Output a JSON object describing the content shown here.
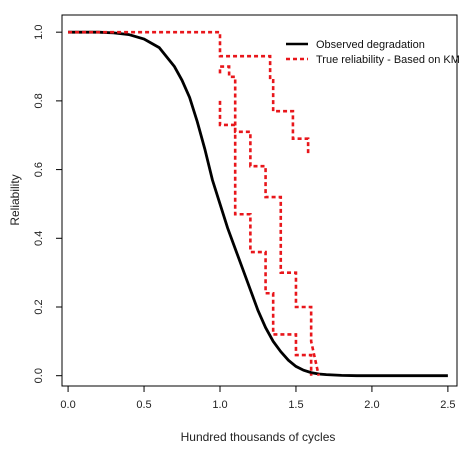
{
  "chart_data": {
    "type": "line",
    "title": "",
    "xlabel": "Hundred thousands of cycles",
    "ylabel": "Reliability",
    "xlim": [
      -0.04,
      2.56
    ],
    "ylim": [
      -0.03,
      1.05
    ],
    "xticks": [
      0.0,
      0.5,
      1.0,
      1.5,
      2.0,
      2.5
    ],
    "xtick_labels": [
      "0.0",
      "0.5",
      "1.0",
      "1.5",
      "2.0",
      "2.5"
    ],
    "yticks": [
      0.0,
      0.2,
      0.4,
      0.6,
      0.8,
      1.0
    ],
    "ytick_labels": [
      "0.0",
      "0.2",
      "0.4",
      "0.6",
      "0.8",
      "1.0"
    ],
    "grid": false,
    "legend_position": "top-right",
    "series": [
      {
        "name": "Observed degradation",
        "style": "solid",
        "color": "#000000",
        "x": [
          0.0,
          0.2,
          0.3,
          0.4,
          0.5,
          0.6,
          0.7,
          0.75,
          0.8,
          0.85,
          0.9,
          0.95,
          1.0,
          1.05,
          1.1,
          1.15,
          1.2,
          1.25,
          1.3,
          1.35,
          1.4,
          1.45,
          1.5,
          1.55,
          1.6,
          1.65,
          1.7,
          1.8,
          1.9,
          2.0,
          2.5
        ],
        "y": [
          1.0,
          1.0,
          0.998,
          0.993,
          0.98,
          0.955,
          0.9,
          0.86,
          0.81,
          0.74,
          0.66,
          0.57,
          0.5,
          0.43,
          0.37,
          0.31,
          0.25,
          0.19,
          0.14,
          0.1,
          0.07,
          0.045,
          0.027,
          0.016,
          0.009,
          0.005,
          0.003,
          0.001,
          0.0,
          0.0,
          0.0
        ]
      },
      {
        "name": "True reliability - Based on KM",
        "style": "dashed",
        "color": "#e8161b",
        "curves": [
          {
            "x": [
              0.0,
              1.0,
              1.0,
              1.3,
              1.3,
              1.33,
              1.33,
              1.35,
              1.35,
              1.48,
              1.48,
              1.58,
              1.58
            ],
            "y": [
              1.0,
              1.0,
              0.93,
              0.93,
              0.93,
              0.93,
              0.86,
              0.86,
              0.77,
              0.77,
              0.69,
              0.69,
              0.64
            ]
          },
          {
            "x": [
              1.0,
              1.0,
              1.06,
              1.06,
              1.1,
              1.1,
              1.2,
              1.2,
              1.3,
              1.3,
              1.4,
              1.4,
              1.5,
              1.5,
              1.6,
              1.6,
              1.65
            ],
            "y": [
              0.88,
              0.9,
              0.9,
              0.87,
              0.87,
              0.71,
              0.71,
              0.61,
              0.61,
              0.52,
              0.52,
              0.3,
              0.3,
              0.2,
              0.2,
              0.1,
              0.0
            ]
          },
          {
            "x": [
              1.0,
              1.0,
              1.1,
              1.1,
              1.2,
              1.2,
              1.3,
              1.3,
              1.35,
              1.35,
              1.5,
              1.5,
              1.6,
              1.6
            ],
            "y": [
              0.8,
              0.73,
              0.73,
              0.47,
              0.47,
              0.36,
              0.36,
              0.24,
              0.24,
              0.12,
              0.12,
              0.06,
              0.06,
              0.0
            ]
          }
        ]
      }
    ]
  }
}
